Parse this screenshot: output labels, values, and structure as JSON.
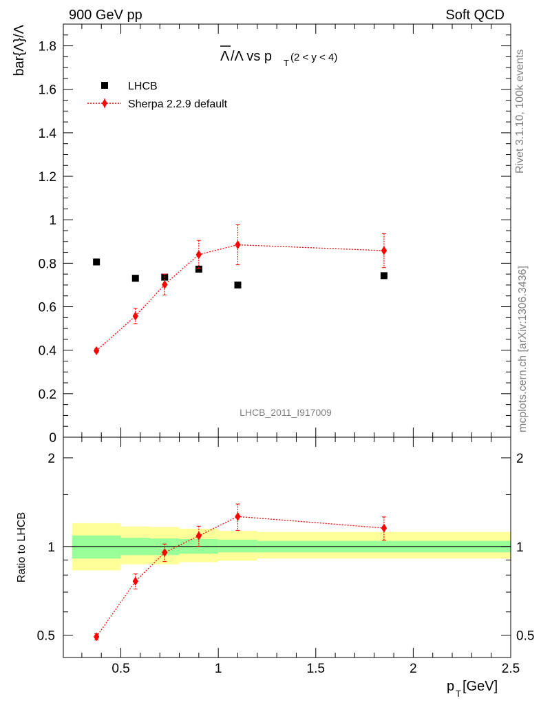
{
  "header": {
    "left": "900 GeV pp",
    "right": "Soft QCD"
  },
  "side_labels": {
    "rivet": "Rivet 3.1.10,  100k events",
    "mcplots": "mcplots.cern.ch [arXiv:1306.3436]"
  },
  "chart_data": [
    {
      "type": "scatter",
      "title": {
        "main_over": "Λ",
        "main_rest": "/Λ vs p",
        "sub": "T",
        "tail": " (2 < y < 4)"
      },
      "ylabel": "bar{Λ}/Λ",
      "watermark": "LHCB_2011_I917009",
      "ylim": [
        0,
        1.9
      ],
      "xlim": [
        0.205,
        2.5
      ],
      "y_ticks": [
        "0",
        "0.2",
        "0.4",
        "0.6",
        "0.8",
        "1",
        "1.2",
        "1.4",
        "1.6",
        "1.8"
      ],
      "y_tick_values": [
        0,
        0.2,
        0.4,
        0.6,
        0.8,
        1.0,
        1.2,
        1.4,
        1.6,
        1.8
      ],
      "legend": {
        "position": "top-left",
        "entries": [
          "LHCB",
          "Sherpa 2.2.9 default"
        ]
      },
      "series": [
        {
          "name": "LHCB",
          "marker": "square",
          "color": "#000000",
          "x": [
            0.375,
            0.575,
            0.725,
            0.9,
            1.1,
            1.85
          ],
          "y": [
            0.806,
            0.731,
            0.736,
            0.773,
            0.7,
            0.743
          ]
        },
        {
          "name": "Sherpa 2.2.9 default",
          "marker": "diamond",
          "color": "#ff0000",
          "x": [
            0.375,
            0.575,
            0.725,
            0.9,
            1.1,
            1.85
          ],
          "y": [
            0.398,
            0.557,
            0.702,
            0.84,
            0.885,
            0.858
          ],
          "yerr": [
            0.008,
            0.035,
            0.048,
            0.065,
            0.092,
            0.078
          ]
        }
      ]
    },
    {
      "type": "scatter",
      "ylabel": "Ratio to LHCB",
      "xlabel_main": "p",
      "xlabel_sub": "T",
      "xlabel_unit": " [GeV]",
      "ylim": [
        0.42,
        2.35
      ],
      "log_y": true,
      "xlim": [
        0.205,
        2.5
      ],
      "y_ticks": [
        "0.5",
        "1",
        "2"
      ],
      "y_tick_values": [
        0.5,
        1,
        2
      ],
      "x_ticks": [
        "0.5",
        "1",
        "1.5",
        "2",
        "2.5"
      ],
      "x_tick_values": [
        0.5,
        1,
        1.5,
        2,
        2.5
      ],
      "bands": [
        {
          "x0": 0.25,
          "x1": 0.5,
          "green": [
            0.91,
            1.09
          ],
          "yellow": [
            0.83,
            1.2
          ]
        },
        {
          "x0": 0.5,
          "x1": 0.65,
          "green": [
            0.935,
            1.07
          ],
          "yellow": [
            0.87,
            1.17
          ]
        },
        {
          "x0": 0.65,
          "x1": 0.8,
          "green": [
            0.935,
            1.065
          ],
          "yellow": [
            0.87,
            1.165
          ]
        },
        {
          "x0": 0.8,
          "x1": 1.0,
          "green": [
            0.945,
            1.06
          ],
          "yellow": [
            0.885,
            1.15
          ]
        },
        {
          "x0": 1.0,
          "x1": 1.2,
          "green": [
            0.955,
            1.055
          ],
          "yellow": [
            0.895,
            1.13
          ]
        },
        {
          "x0": 1.2,
          "x1": 2.5,
          "green": [
            0.955,
            1.045
          ],
          "yellow": [
            0.91,
            1.12
          ]
        }
      ],
      "series": [
        {
          "name": "Sherpa 2.2.9 default",
          "marker": "diamond",
          "color": "#ff0000",
          "x": [
            0.375,
            0.575,
            0.725,
            0.9,
            1.1,
            1.85
          ],
          "y": [
            0.494,
            0.762,
            0.954,
            1.087,
            1.264,
            1.155
          ],
          "yerr": [
            0.012,
            0.045,
            0.065,
            0.085,
            0.13,
            0.105
          ]
        }
      ]
    }
  ]
}
